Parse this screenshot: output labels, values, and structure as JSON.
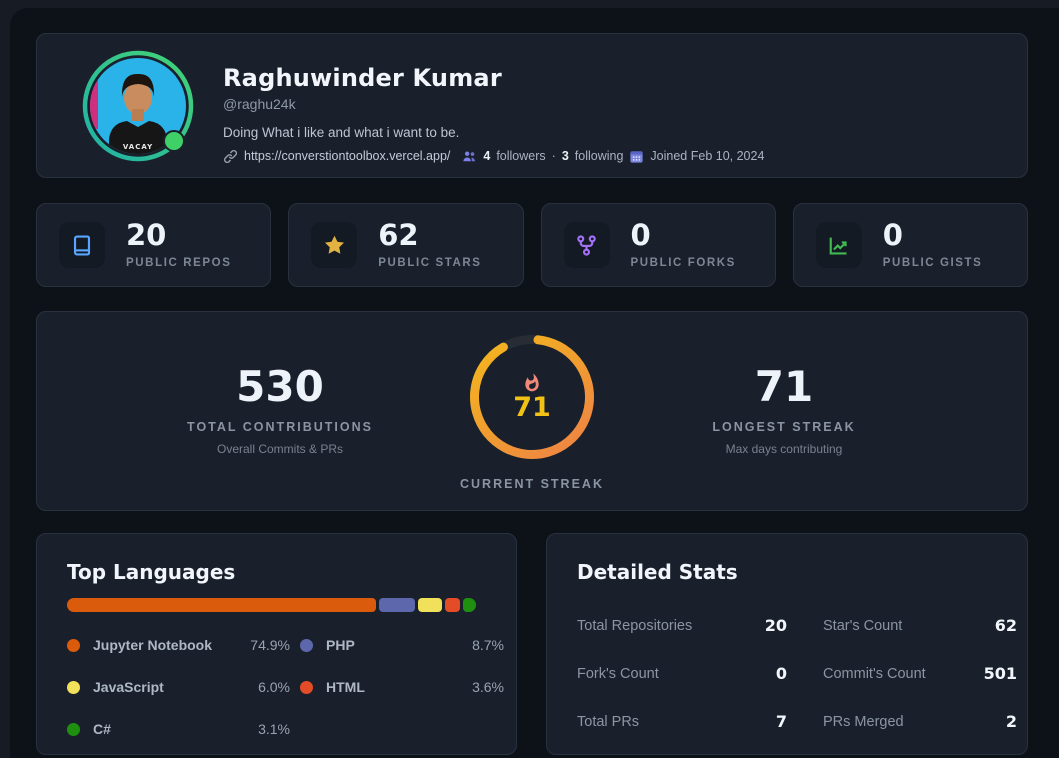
{
  "profile": {
    "name": "Raghuwinder Kumar",
    "handle": "@raghu24k",
    "bio": "Doing What i like and what i want to be.",
    "website": "https://converstiontoolbox.vercel.app/",
    "followers_count": "4",
    "followers_label": "followers",
    "separator": "·",
    "following_count": "3",
    "following_label": "following",
    "joined": "Joined Feb 10, 2024",
    "avatar_shirt_text": "VACAY",
    "status_color": "#3fd068"
  },
  "stat_cards": [
    {
      "icon": "repo-book-icon",
      "value": "20",
      "label": "PUBLIC REPOS",
      "color": "#58a6ff"
    },
    {
      "icon": "star-icon",
      "value": "62",
      "label": "PUBLIC STARS",
      "color": "#e3b341"
    },
    {
      "icon": "git-fork-icon",
      "value": "0",
      "label": "PUBLIC FORKS",
      "color": "#a371f7"
    },
    {
      "icon": "trend-chart-icon",
      "value": "0",
      "label": "PUBLIC GISTS",
      "color": "#3fb950"
    }
  ],
  "streak": {
    "total": {
      "value": "530",
      "label": "TOTAL CONTRIBUTIONS",
      "sublabel": "Overall Commits & PRs"
    },
    "current": {
      "value": "71",
      "label": "CURRENT STREAK",
      "ring_colors": [
        "#ee8145",
        "#f3b81c"
      ],
      "number_color": "#f2c116",
      "flame_color": "#f0897a"
    },
    "longest": {
      "value": "71",
      "label": "LONGEST STREAK",
      "sublabel": "Max days contributing"
    }
  },
  "languages": {
    "title": "Top Languages",
    "items": [
      {
        "name": "Jupyter Notebook",
        "percent": "74.9%",
        "value": 74.9,
        "color": "#DA5B0B"
      },
      {
        "name": "PHP",
        "percent": "8.7%",
        "value": 8.7,
        "color": "#5c68ab"
      },
      {
        "name": "JavaScript",
        "percent": "6.0%",
        "value": 6.0,
        "color": "#f1e05a"
      },
      {
        "name": "HTML",
        "percent": "3.6%",
        "value": 3.6,
        "color": "#e34c26"
      },
      {
        "name": "C#",
        "percent": "3.1%",
        "value": 3.1,
        "color": "#1f8f10"
      }
    ]
  },
  "detailed_stats": {
    "title": "Detailed Stats",
    "rows": [
      {
        "label": "Total Repositories",
        "value": "20"
      },
      {
        "label": "Star's Count",
        "value": "62"
      },
      {
        "label": "Fork's Count",
        "value": "0"
      },
      {
        "label": "Commit's Count",
        "value": "501"
      },
      {
        "label": "Total PRs",
        "value": "7"
      },
      {
        "label": "PRs Merged",
        "value": "2"
      }
    ]
  }
}
